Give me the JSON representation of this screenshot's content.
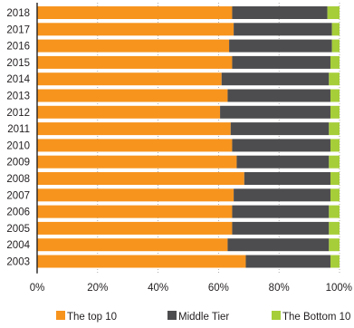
{
  "chart_data": {
    "type": "bar",
    "orientation": "horizontal",
    "stacked": true,
    "normalized": true,
    "title": "",
    "xlabel": "",
    "ylabel": "",
    "xlim": [
      0,
      100
    ],
    "x_ticks": [
      "0%",
      "20%",
      "40%",
      "60%",
      "80%",
      "100%"
    ],
    "grid": "vertical dotted",
    "legend_position": "bottom",
    "categories": [
      "2018",
      "2017",
      "2016",
      "2015",
      "2014",
      "2013",
      "2012",
      "2011",
      "2010",
      "2009",
      "2008",
      "2007",
      "2006",
      "2005",
      "2004",
      "2003"
    ],
    "series": [
      {
        "name": "The top 10",
        "color": "#f7941d",
        "values": [
          64.5,
          65,
          63.5,
          64.5,
          61,
          63,
          60.5,
          64,
          64.5,
          66,
          68.5,
          65,
          64.5,
          64.5,
          63,
          69
        ]
      },
      {
        "name": "Middle Tier",
        "color": "#4d4d4f",
        "values": [
          31.5,
          32.5,
          34,
          32.5,
          35.5,
          34,
          36.5,
          32.5,
          32.5,
          30.5,
          28.5,
          32,
          32,
          32,
          33.5,
          28
        ]
      },
      {
        "name": "The Bottom 10",
        "color": "#a6ce39",
        "values": [
          4,
          2.5,
          2.5,
          3,
          3.5,
          3,
          3,
          3.5,
          3,
          3.5,
          3,
          3,
          3.5,
          3.5,
          3.5,
          3
        ]
      }
    ]
  }
}
